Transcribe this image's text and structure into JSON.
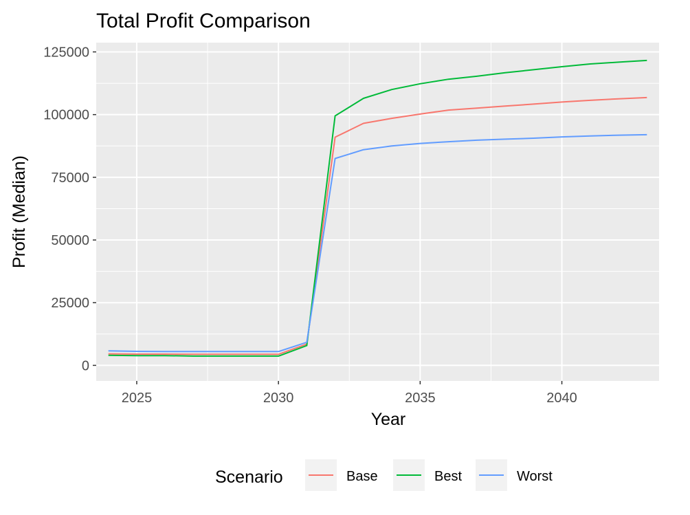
{
  "chart_data": {
    "type": "line",
    "title": "Total Profit Comparison",
    "xlabel": "Year",
    "ylabel": "Profit (Median)",
    "xlim": [
      2023.57,
      2043.43
    ],
    "ylim": [
      -6200,
      128700
    ],
    "x_ticks": [
      2025,
      2030,
      2035,
      2040
    ],
    "x_tick_labels": [
      "2025",
      "2030",
      "2035",
      "2040"
    ],
    "y_ticks": [
      0,
      25000,
      50000,
      75000,
      100000,
      125000
    ],
    "y_tick_labels": [
      "0",
      "25000",
      "50000",
      "75000",
      "100000",
      "125000"
    ],
    "grid": true,
    "legend": {
      "title": "Scenario",
      "position": "bottom"
    },
    "x": [
      2024,
      2025,
      2026,
      2027,
      2028,
      2029,
      2030,
      2031,
      2032,
      2033,
      2034,
      2035,
      2036,
      2037,
      2038,
      2039,
      2040,
      2041,
      2042,
      2043
    ],
    "series": [
      {
        "name": "Base",
        "color": "#F8766D",
        "values": [
          4600,
          4500,
          4500,
          4400,
          4400,
          4400,
          4400,
          8500,
          91000,
          96500,
          98500,
          100200,
          101800,
          102600,
          103400,
          104200,
          105000,
          105700,
          106300,
          106800
        ]
      },
      {
        "name": "Best",
        "color": "#00BA38",
        "values": [
          4000,
          3900,
          3900,
          3700,
          3700,
          3700,
          3700,
          7900,
          99500,
          106500,
          110000,
          112300,
          114100,
          115300,
          116700,
          117900,
          119100,
          120200,
          120900,
          121600
        ]
      },
      {
        "name": "Worst",
        "color": "#619CFF",
        "values": [
          5800,
          5600,
          5500,
          5500,
          5500,
          5500,
          5500,
          9200,
          82500,
          86000,
          87500,
          88500,
          89200,
          89800,
          90200,
          90600,
          91100,
          91500,
          91800,
          92000
        ]
      }
    ]
  }
}
